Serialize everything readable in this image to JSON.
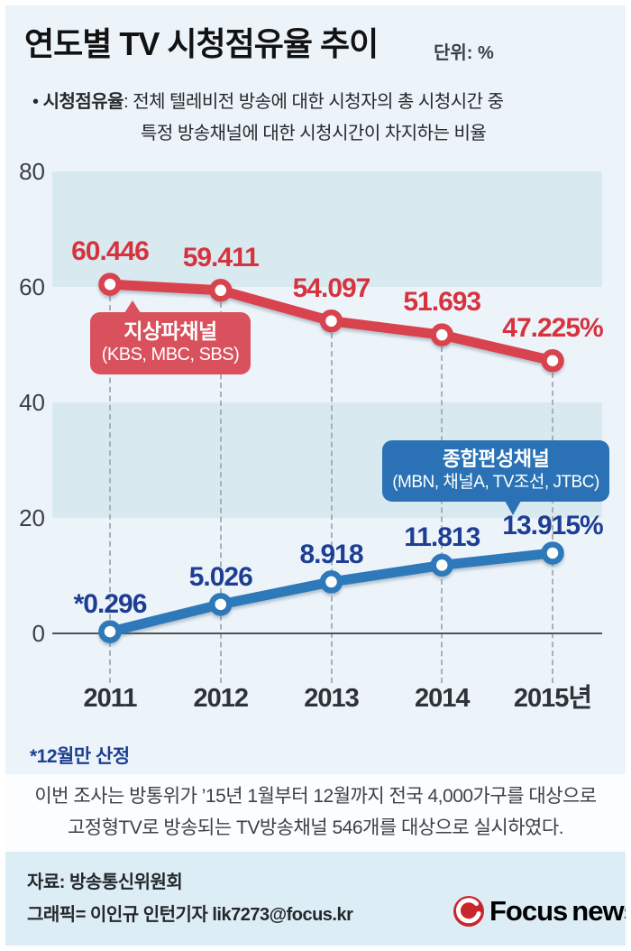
{
  "header": {
    "title": "연도별 TV 시청점유율 추이",
    "unit_label": "단위: %",
    "definition_bullet": "•",
    "definition_term": "시청점유율",
    "definition_rest": ": 전체 텔레비전 방송에 대한 시청자의 총 시청시간 중",
    "definition_line2": "특정 방송채널에 대한 시청시간이 차지하는 비율"
  },
  "chart_data": {
    "type": "line",
    "categories": [
      "2011",
      "2012",
      "2013",
      "2014",
      "2015년"
    ],
    "series": [
      {
        "name": "지상파채널",
        "sublabel": "(KBS, MBC, SBS)",
        "values": [
          60.446,
          59.411,
          54.097,
          51.693,
          47.225
        ],
        "point_labels": [
          "60.446",
          "59.411",
          "54.097",
          "51.693",
          "47.225%"
        ],
        "line_color": "#d8434e",
        "label_color": "#d6333f"
      },
      {
        "name": "종합편성채널",
        "sublabel": "(MBN, 채널A, TV조선, JTBC)",
        "values": [
          0.296,
          5.026,
          8.918,
          11.813,
          13.915
        ],
        "point_labels": [
          "*0.296",
          "5.026",
          "8.918",
          "11.813",
          "13.915%"
        ],
        "line_color": "#2e79ba",
        "label_color": "#1e3e93"
      }
    ],
    "ylim": [
      0,
      80
    ],
    "yticks": [
      0,
      20,
      40,
      60,
      80
    ],
    "band_pairs": [
      [
        60,
        80
      ],
      [
        20,
        40
      ]
    ],
    "band_color": "#d9e9f0",
    "grid": "horizontal-bands",
    "legend_position": "callouts-on-chart"
  },
  "footnote": "*12월만 산정",
  "note": {
    "line1": "이번 조사는 방통위가 ’15년 1월부터 12월까지 전국 4,000가구를 대상으로",
    "line2": "고정형TV로 방송되는 TV방송채널 546개를 대상으로 실시하였다."
  },
  "footer": {
    "source": "자료: 방송통신위원회",
    "credit": "그래픽= 이인규 인턴기자 lik7273@focus.kr",
    "logo_focus": "Focus",
    "logo_news": "news",
    "logo_red": "#c9252c",
    "logo_gray": "#8a9298"
  }
}
